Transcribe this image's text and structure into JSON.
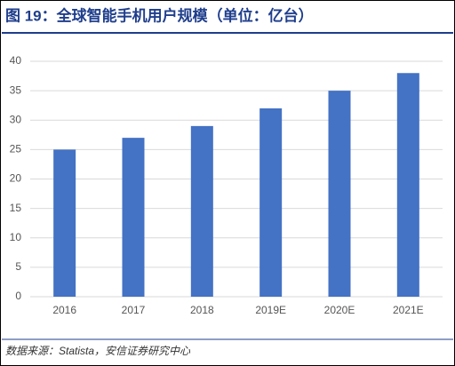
{
  "chart_data": {
    "type": "bar",
    "title": "图 19：全球智能手机用户规模（单位：亿台）",
    "source": "数据来源：Statista，安信证券研究中心",
    "categories": [
      "2016",
      "2017",
      "2018",
      "2019E",
      "2020E",
      "2021E"
    ],
    "values": [
      25,
      27,
      29,
      32,
      35,
      38
    ],
    "color": "#4472c4",
    "ylim": [
      0,
      40
    ],
    "yticks": [
      0,
      5,
      10,
      15,
      20,
      25,
      30,
      35,
      40
    ],
    "grid": true
  }
}
